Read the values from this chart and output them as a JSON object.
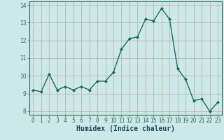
{
  "x": [
    0,
    1,
    2,
    3,
    4,
    5,
    6,
    7,
    8,
    9,
    10,
    11,
    12,
    13,
    14,
    15,
    16,
    17,
    18,
    19,
    20,
    21,
    22,
    23
  ],
  "y": [
    9.2,
    9.1,
    10.1,
    9.2,
    9.4,
    9.2,
    9.4,
    9.2,
    9.7,
    9.7,
    10.2,
    11.5,
    12.1,
    12.2,
    13.2,
    13.1,
    13.8,
    13.2,
    10.4,
    9.8,
    8.6,
    8.7,
    8.0,
    8.5
  ],
  "line_color": "#1a6b5a",
  "marker": "D",
  "marker_size": 2.0,
  "line_width": 1.0,
  "xlabel": "Humidex (Indice chaleur)",
  "xlabel_fontsize": 7,
  "xlim": [
    -0.5,
    23.5
  ],
  "ylim": [
    7.8,
    14.2
  ],
  "yticks": [
    8,
    9,
    10,
    11,
    12,
    13,
    14
  ],
  "xticks": [
    0,
    1,
    2,
    3,
    4,
    5,
    6,
    7,
    8,
    9,
    10,
    11,
    12,
    13,
    14,
    15,
    16,
    17,
    18,
    19,
    20,
    21,
    22,
    23
  ],
  "background_color": "#cde8e8",
  "grid_color": "#b8a8a8",
  "tick_fontsize": 5.5,
  "xlabel_color": "#1a4a5a",
  "spine_color": "#2a6a5a"
}
